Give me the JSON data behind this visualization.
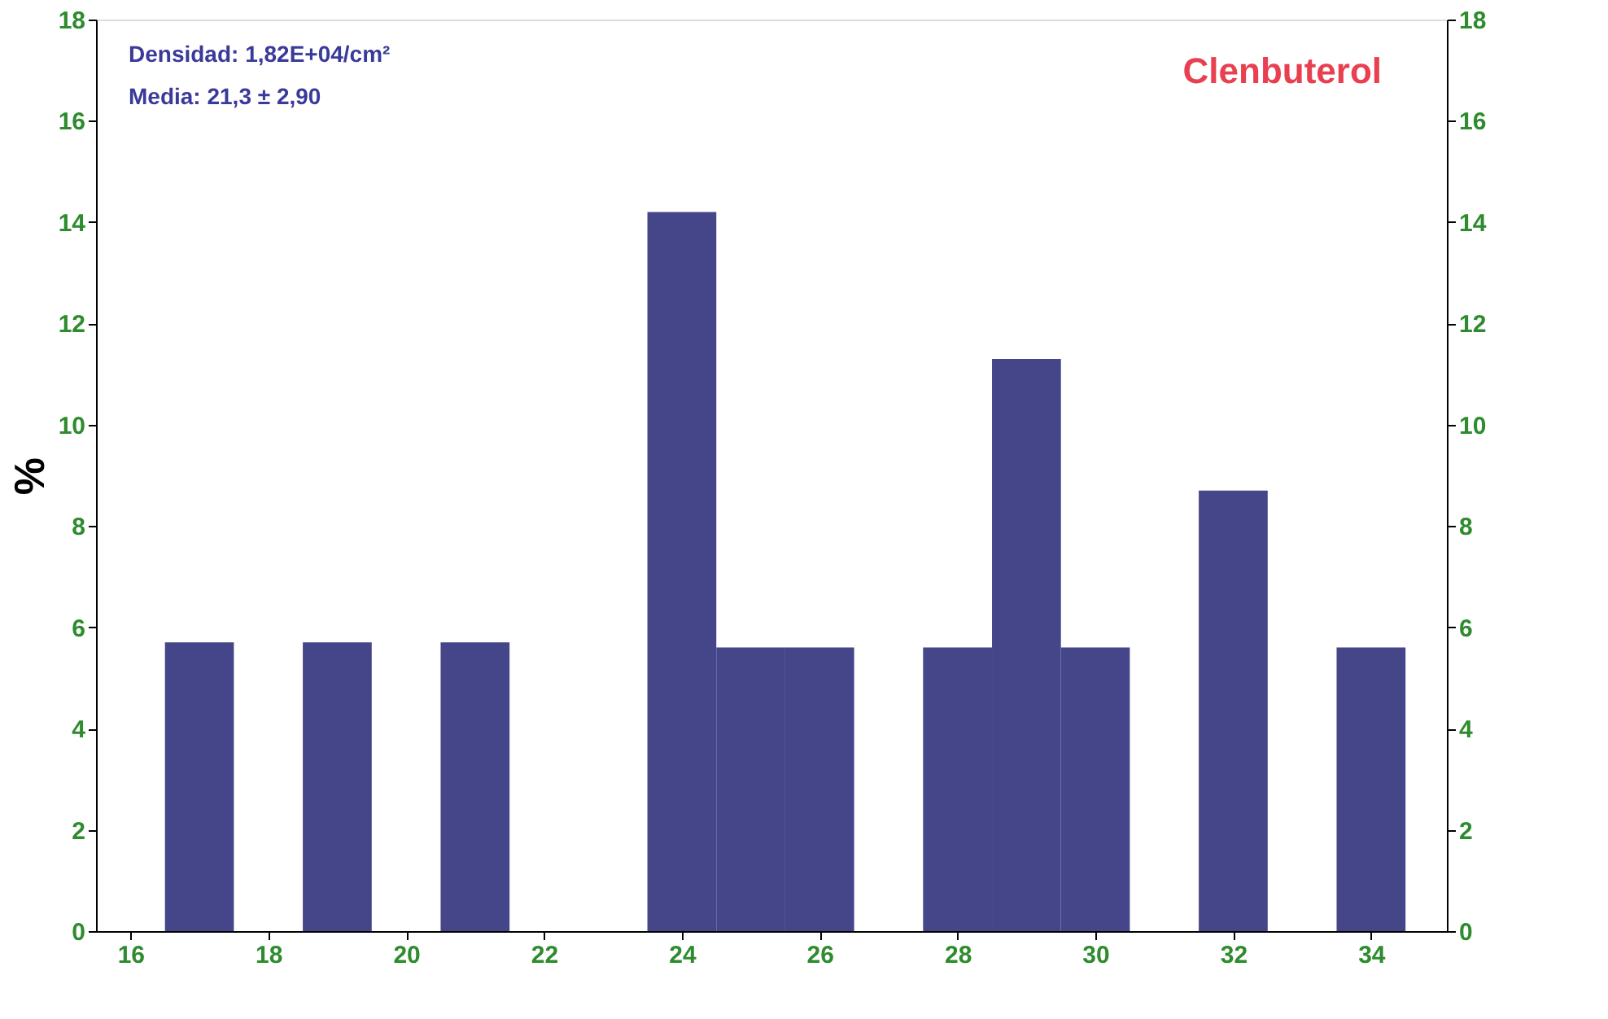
{
  "chart_data": {
    "type": "histogram",
    "bins": [
      16.5,
      17.5,
      18.5,
      19.5,
      20.5,
      21.5,
      22.5,
      23.5,
      24.5,
      25.5,
      26.5,
      27.5,
      28.5,
      29.5,
      30.5,
      31.5,
      32.5,
      33.5,
      34.5
    ],
    "values": [
      5.7,
      0,
      5.7,
      0,
      5.7,
      0,
      0,
      14.2,
      5.6,
      5.6,
      0,
      5.6,
      11.3,
      5.6,
      0,
      8.7,
      0,
      5.6
    ],
    "color": "#45458a",
    "ylabel": "%",
    "xlim": [
      15.5,
      35.1
    ],
    "xticks": [
      16,
      18,
      20,
      22,
      24,
      26,
      28,
      30,
      32,
      34
    ],
    "ylim": [
      0,
      18
    ],
    "yticks": [
      0,
      2,
      4,
      6,
      8,
      10,
      12,
      14,
      16,
      18
    ],
    "y2lim": [
      0,
      18
    ],
    "y2ticks": [
      0,
      2,
      4,
      6,
      8,
      10,
      12,
      14,
      16,
      18
    ],
    "annotations": [
      "Densidad: 1,82E+04/cm²",
      "Media: 21,3 ± 2,90",
      "Clenbuterol"
    ],
    "grid": false
  }
}
